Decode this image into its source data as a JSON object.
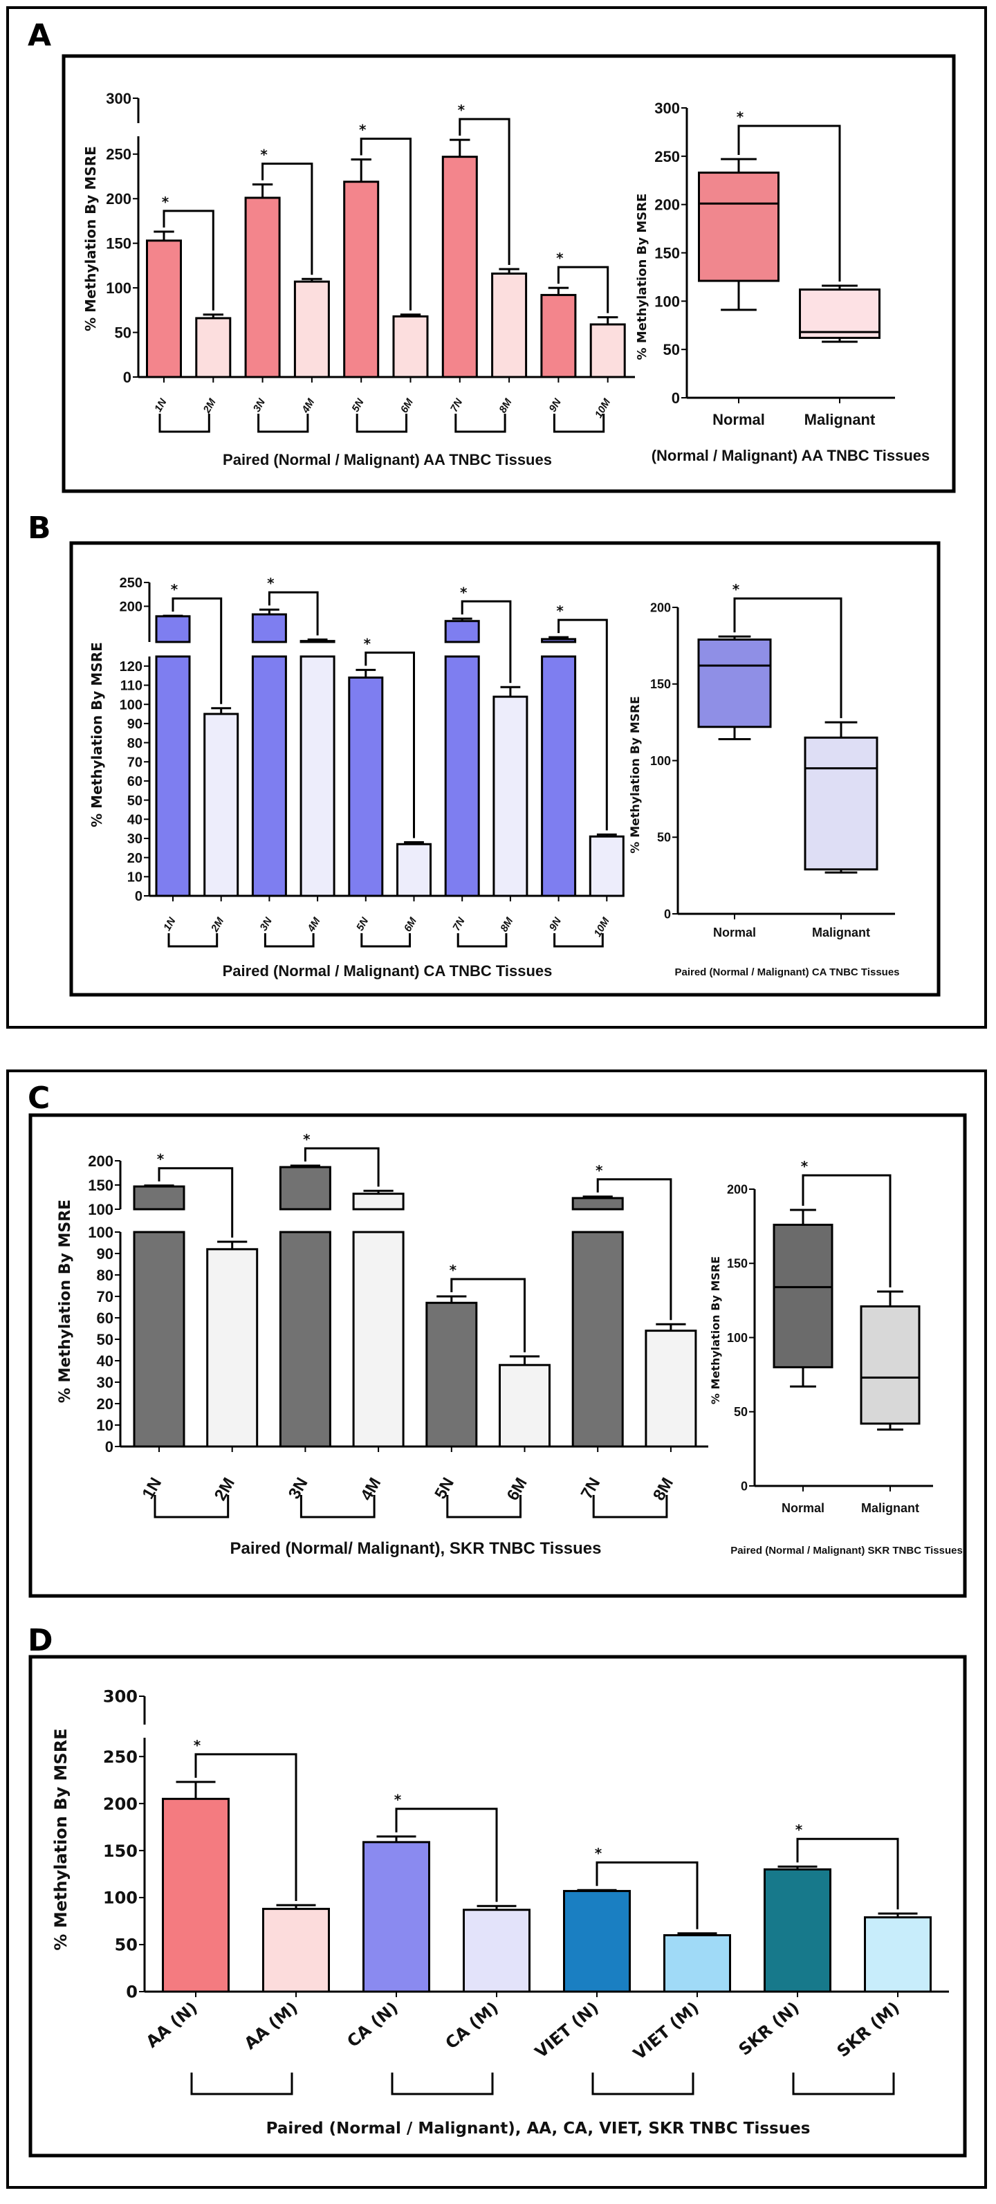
{
  "panel_labels": {
    "a": "A",
    "b": "B",
    "c": "C",
    "d": "D"
  },
  "chart_data": [
    {
      "type": "bar",
      "ylabel": "% Methylation By MSRE",
      "xlabel": "Paired (Normal / Malignant) AA TNBC Tissues",
      "categories": [
        "1N",
        "2M",
        "3N",
        "4M",
        "5N",
        "6M",
        "7N",
        "8M",
        "9N",
        "10M"
      ],
      "values": [
        153,
        66,
        201,
        107,
        219,
        68,
        247,
        116,
        92,
        59
      ],
      "error_upper": [
        163,
        70,
        216,
        110,
        244,
        70,
        266,
        121,
        100,
        67
      ],
      "y_segments": [
        [
          0,
          270
        ],
        [
          270,
          300
        ]
      ],
      "y_ticks": [
        [
          0,
          50,
          100,
          150,
          200,
          250
        ],
        [
          300
        ]
      ],
      "colors": {
        "normal": "#f3858c",
        "malignant": "#fcdede"
      },
      "significance": [
        {
          "pair": [
            0,
            1
          ],
          "label": "*"
        },
        {
          "pair": [
            2,
            3
          ],
          "label": "*"
        },
        {
          "pair": [
            4,
            5
          ],
          "label": "*"
        },
        {
          "pair": [
            6,
            7
          ],
          "label": "*"
        },
        {
          "pair": [
            8,
            9
          ],
          "label": "*"
        }
      ]
    },
    {
      "type": "box",
      "ylabel": "% Methylation By MSRE",
      "xlabel": "(Normal / Malignant) AA TNBC Tissues",
      "categories": [
        "Normal",
        "Malignant"
      ],
      "boxes": [
        {
          "min": 91,
          "q1": 121,
          "median": 201,
          "q3": 233,
          "max": 247
        },
        {
          "min": 58,
          "q1": 62,
          "median": 68,
          "q3": 112,
          "max": 116
        }
      ],
      "y_segments": [
        [
          0,
          300
        ]
      ],
      "y_ticks": [
        [
          0,
          50,
          100,
          150,
          200,
          250,
          300
        ]
      ],
      "colors": {
        "normal": "#f0878e",
        "malignant": "#fde1e4"
      },
      "significance": [
        {
          "pair": [
            0,
            1
          ],
          "label": "*"
        }
      ]
    },
    {
      "type": "bar",
      "ylabel": "% Methylation By MSRE",
      "xlabel": "Paired (Normal / Malignant) CA TNBC Tissues",
      "categories": [
        "1N",
        "2M",
        "3N",
        "4M",
        "5N",
        "6M",
        "7N",
        "8M",
        "9N",
        "10M"
      ],
      "values": [
        179,
        95,
        183,
        127,
        114,
        27,
        169,
        104,
        131,
        31
      ],
      "error_upper": [
        180,
        98,
        193,
        130,
        118,
        28,
        174,
        109,
        135,
        32
      ],
      "y_segments": [
        [
          0,
          125
        ],
        [
          125,
          250
        ]
      ],
      "y_ticks": [
        [
          0,
          10,
          20,
          30,
          40,
          50,
          60,
          70,
          80,
          90,
          100,
          110,
          120
        ],
        [
          200,
          250
        ]
      ],
      "colors": {
        "normal": "#7e7ef0",
        "malignant": "#ededfb"
      },
      "significance": [
        {
          "pair": [
            0,
            1
          ],
          "label": "*"
        },
        {
          "pair": [
            2,
            3
          ],
          "label": "*"
        },
        {
          "pair": [
            4,
            5
          ],
          "label": "*"
        },
        {
          "pair": [
            6,
            7
          ],
          "label": "*"
        },
        {
          "pair": [
            8,
            9
          ],
          "label": "*"
        }
      ]
    },
    {
      "type": "box",
      "ylabel": "% Methylation By MSRE",
      "xlabel": "Paired (Normal / Malignant) CA TNBC Tissues",
      "categories": [
        "Normal",
        "Malignant"
      ],
      "boxes": [
        {
          "min": 114,
          "q1": 122,
          "median": 162,
          "q3": 179,
          "max": 181
        },
        {
          "min": 27,
          "q1": 29,
          "median": 95,
          "q3": 115,
          "max": 125
        }
      ],
      "y_segments": [
        [
          0,
          200
        ]
      ],
      "y_ticks": [
        [
          0,
          50,
          100,
          150,
          200
        ]
      ],
      "colors": {
        "normal": "#8f8fe6",
        "malignant": "#dedef5"
      },
      "significance": [
        {
          "pair": [
            0,
            1
          ],
          "label": "*"
        }
      ]
    },
    {
      "type": "bar",
      "ylabel": "% Methylation By MSRE",
      "xlabel": "Paired (Normal/ Malignant), SKR TNBC Tissues",
      "categories": [
        "1N",
        "2M",
        "3N",
        "4M",
        "5N",
        "6M",
        "7N",
        "8M"
      ],
      "values": [
        147,
        92,
        187,
        132,
        67,
        38,
        123,
        54
      ],
      "error_upper": [
        149,
        95.5,
        190,
        138,
        70,
        42,
        126,
        57
      ],
      "y_segments": [
        [
          0,
          100
        ],
        [
          100,
          200
        ]
      ],
      "y_ticks": [
        [
          0,
          10,
          20,
          30,
          40,
          50,
          60,
          70,
          80,
          90,
          100
        ],
        [
          100,
          150,
          200
        ]
      ],
      "colors": {
        "normal": "#727272",
        "malignant": "#f3f3f3"
      },
      "significance": [
        {
          "pair": [
            0,
            1
          ],
          "label": "*"
        },
        {
          "pair": [
            2,
            3
          ],
          "label": "*"
        },
        {
          "pair": [
            4,
            5
          ],
          "label": "*"
        },
        {
          "pair": [
            6,
            7
          ],
          "label": "*"
        }
      ]
    },
    {
      "type": "box",
      "ylabel": "% Methylation By MSRE",
      "xlabel": "Paired (Normal / Malignant) SKR TNBC Tissues",
      "categories": [
        "Normal",
        "Malignant"
      ],
      "boxes": [
        {
          "min": 67,
          "q1": 80,
          "median": 134,
          "q3": 176,
          "max": 186
        },
        {
          "min": 38,
          "q1": 42,
          "median": 73,
          "q3": 121,
          "max": 131
        }
      ],
      "y_segments": [
        [
          0,
          200
        ]
      ],
      "y_ticks": [
        [
          0,
          50,
          100,
          150,
          200
        ]
      ],
      "colors": {
        "normal": "#6b6b6b",
        "malignant": "#d8d8d8"
      },
      "significance": [
        {
          "pair": [
            0,
            1
          ],
          "label": "*"
        }
      ]
    },
    {
      "type": "bar",
      "ylabel": "% Methylation By MSRE",
      "xlabel": "Paired (Normal / Malignant), AA, CA, VIET, SKR TNBC Tissues",
      "categories": [
        "AA (N)",
        "AA (M)",
        "CA (N)",
        "CA (M)",
        "VIET (N)",
        "VIET (M)",
        "SKR (N)",
        "SKR (M)"
      ],
      "values": [
        205,
        88,
        159,
        87,
        107,
        60,
        130,
        79
      ],
      "error_upper": [
        223,
        92,
        165,
        91,
        108,
        62,
        133,
        83
      ],
      "y_segments": [
        [
          0,
          270
        ],
        [
          270,
          300
        ]
      ],
      "y_ticks": [
        [
          0,
          50,
          100,
          150,
          200,
          250
        ],
        [
          300
        ]
      ],
      "bar_colors": [
        "#f47b80",
        "#fcdcdc",
        "#8a8af0",
        "#e3e3fa",
        "#1a7fc2",
        "#a0daf7",
        "#17798b",
        "#c8edfb"
      ],
      "significance": [
        {
          "pair": [
            0,
            1
          ],
          "label": "*"
        },
        {
          "pair": [
            2,
            3
          ],
          "label": "*"
        },
        {
          "pair": [
            4,
            5
          ],
          "label": "*"
        },
        {
          "pair": [
            6,
            7
          ],
          "label": "*"
        }
      ]
    }
  ]
}
